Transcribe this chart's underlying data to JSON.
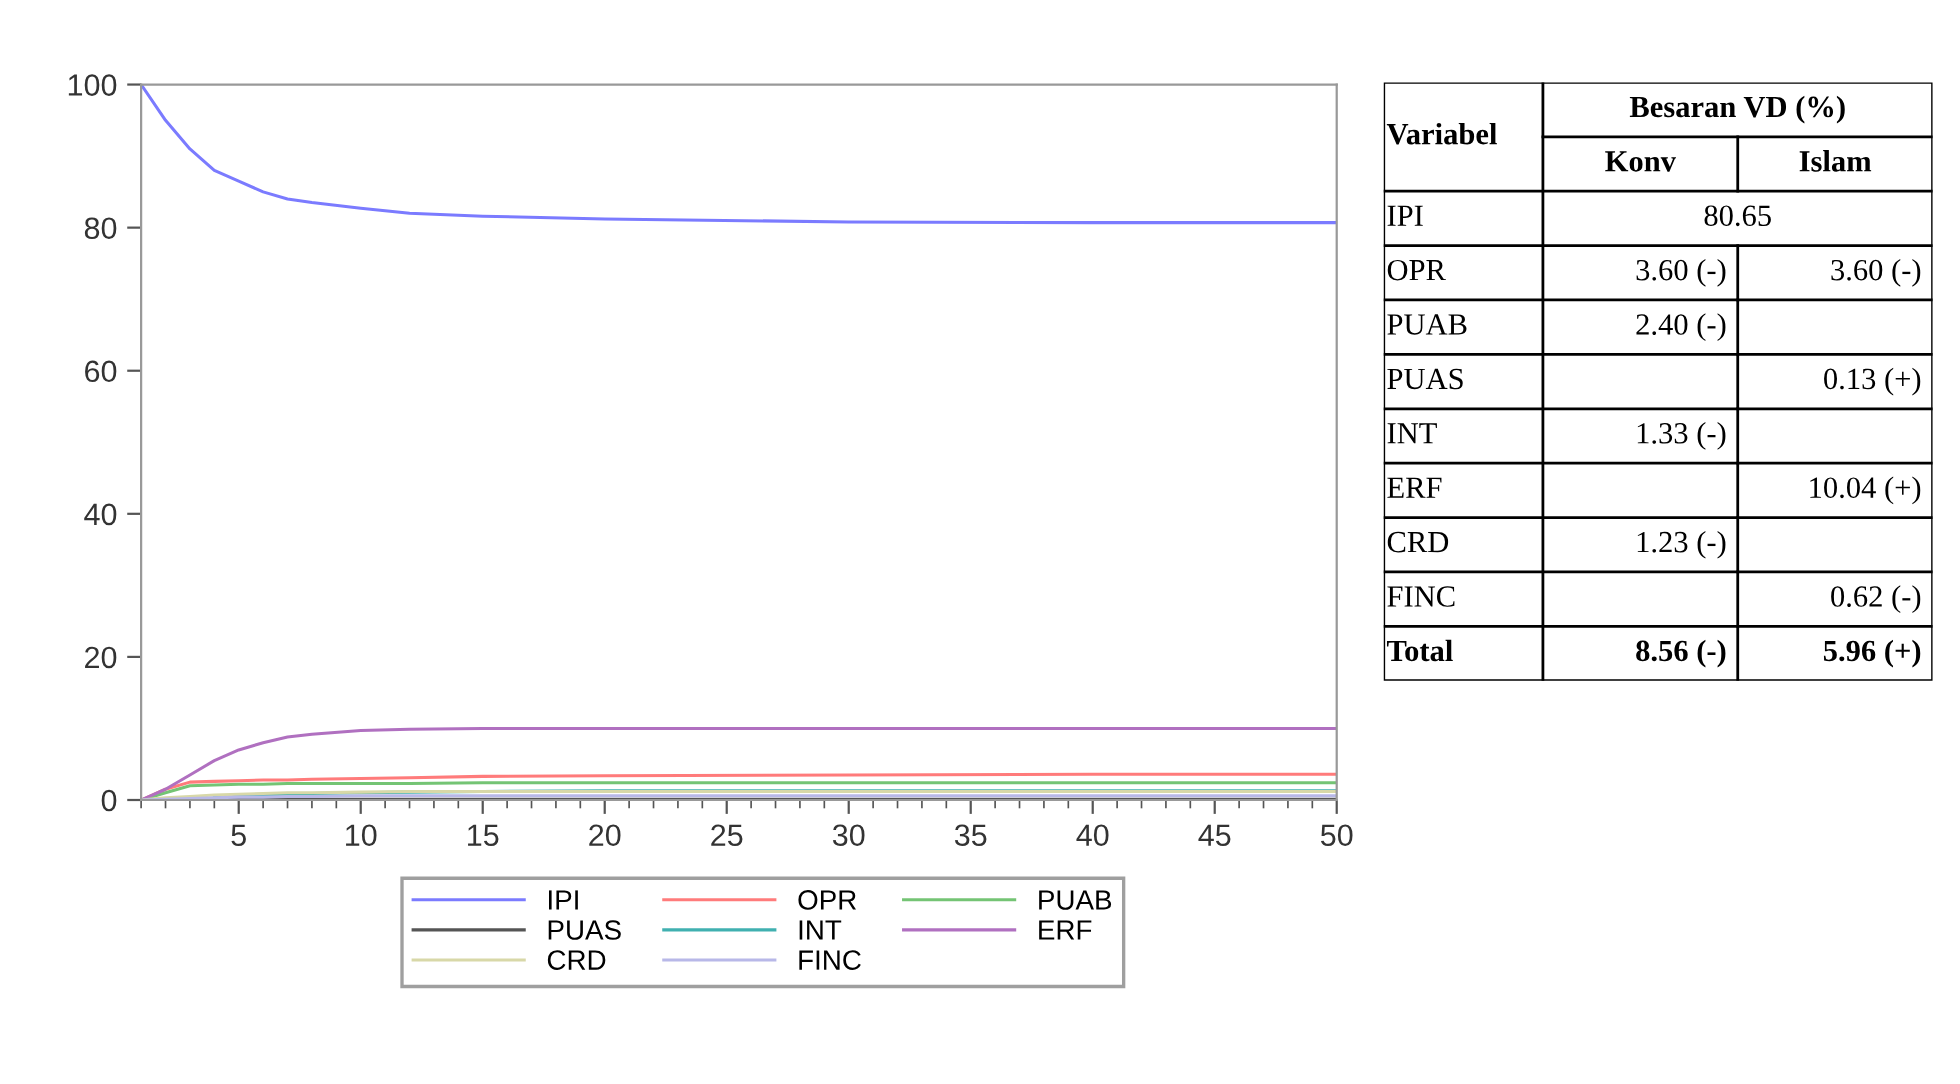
{
  "chart_data": [
    {
      "type": "line",
      "x": [
        1,
        2,
        3,
        4,
        5,
        6,
        7,
        8,
        10,
        12,
        15,
        20,
        30,
        40,
        50
      ],
      "xlim": [
        1,
        50
      ],
      "xticks": [
        5,
        10,
        15,
        20,
        25,
        30,
        35,
        40,
        45,
        50
      ],
      "ylim": [
        0,
        100
      ],
      "yticks": [
        0,
        20,
        40,
        60,
        80,
        100
      ],
      "grid": false,
      "legend": "bottom",
      "line_style": "solid",
      "marker": "none",
      "series": [
        {
          "name": "IPI",
          "color": "#7b7bff",
          "values": [
            100,
            95,
            91,
            88,
            86.5,
            85,
            84,
            83.5,
            82.7,
            82,
            81.6,
            81.2,
            80.8,
            80.7,
            80.7
          ]
        },
        {
          "name": "OPR",
          "color": "#ff7b7b",
          "values": [
            0,
            1.5,
            2.5,
            2.6,
            2.7,
            2.8,
            2.8,
            2.9,
            3,
            3.1,
            3.3,
            3.4,
            3.5,
            3.6,
            3.6
          ]
        },
        {
          "name": "PUAB",
          "color": "#74c474",
          "values": [
            0,
            1,
            2,
            2.1,
            2.2,
            2.2,
            2.3,
            2.3,
            2.3,
            2.3,
            2.4,
            2.4,
            2.4,
            2.4,
            2.4
          ]
        },
        {
          "name": "PUAS",
          "color": "#555555",
          "values": [
            0,
            0.1,
            0.1,
            0.1,
            0.1,
            0.1,
            0.1,
            0.1,
            0.1,
            0.1,
            0.1,
            0.1,
            0.1,
            0.1,
            0.1
          ]
        },
        {
          "name": "INT",
          "color": "#40b0b0",
          "values": [
            null,
            null,
            null,
            0.5,
            0.6,
            0.7,
            0.8,
            0.9,
            1.0,
            1.1,
            1.2,
            1.3,
            1.3,
            1.3,
            1.3
          ]
        },
        {
          "name": "ERF",
          "color": "#b070c0",
          "values": [
            0,
            1.5,
            3.5,
            5.5,
            7,
            8,
            8.8,
            9.2,
            9.7,
            9.9,
            10,
            10,
            10,
            10,
            10
          ]
        },
        {
          "name": "CRD",
          "color": "#d8d8a8",
          "values": [
            0,
            0.3,
            0.5,
            0.7,
            0.8,
            0.9,
            1.0,
            1.0,
            1.1,
            1.2,
            1.2,
            1.2,
            1.2,
            1.2,
            1.2
          ]
        },
        {
          "name": "FINC",
          "color": "#b8b8e8",
          "values": [
            0,
            0.1,
            0.2,
            0.3,
            0.4,
            0.4,
            0.5,
            0.5,
            0.6,
            0.6,
            0.6,
            0.6,
            0.6,
            0.6,
            0.6
          ]
        }
      ]
    },
    {
      "type": "other",
      "title": "Besaran VD (%)",
      "ylabel": "Variabel",
      "categories": [
        "Konv",
        "Islam"
      ],
      "y_categories": [
        "IPI",
        "OPR",
        "PUAB",
        "PUAS",
        "INT",
        "ERF",
        "CRD",
        "FINC",
        "Total"
      ],
      "cell_labels": [
        [
          "80.65"
        ],
        [
          "3.60 (-)",
          "3.60 (-)"
        ],
        [
          "2.40 (-)",
          null
        ],
        [
          null,
          "0.13 (+)"
        ],
        [
          "1.33 (-)",
          null
        ],
        [
          null,
          "10.04 (+)"
        ],
        [
          "1.23 (-)",
          null
        ],
        [
          null,
          "0.62 (-)"
        ],
        [
          "8.56 (-)",
          "5.96 (+)"
        ]
      ]
    }
  ]
}
